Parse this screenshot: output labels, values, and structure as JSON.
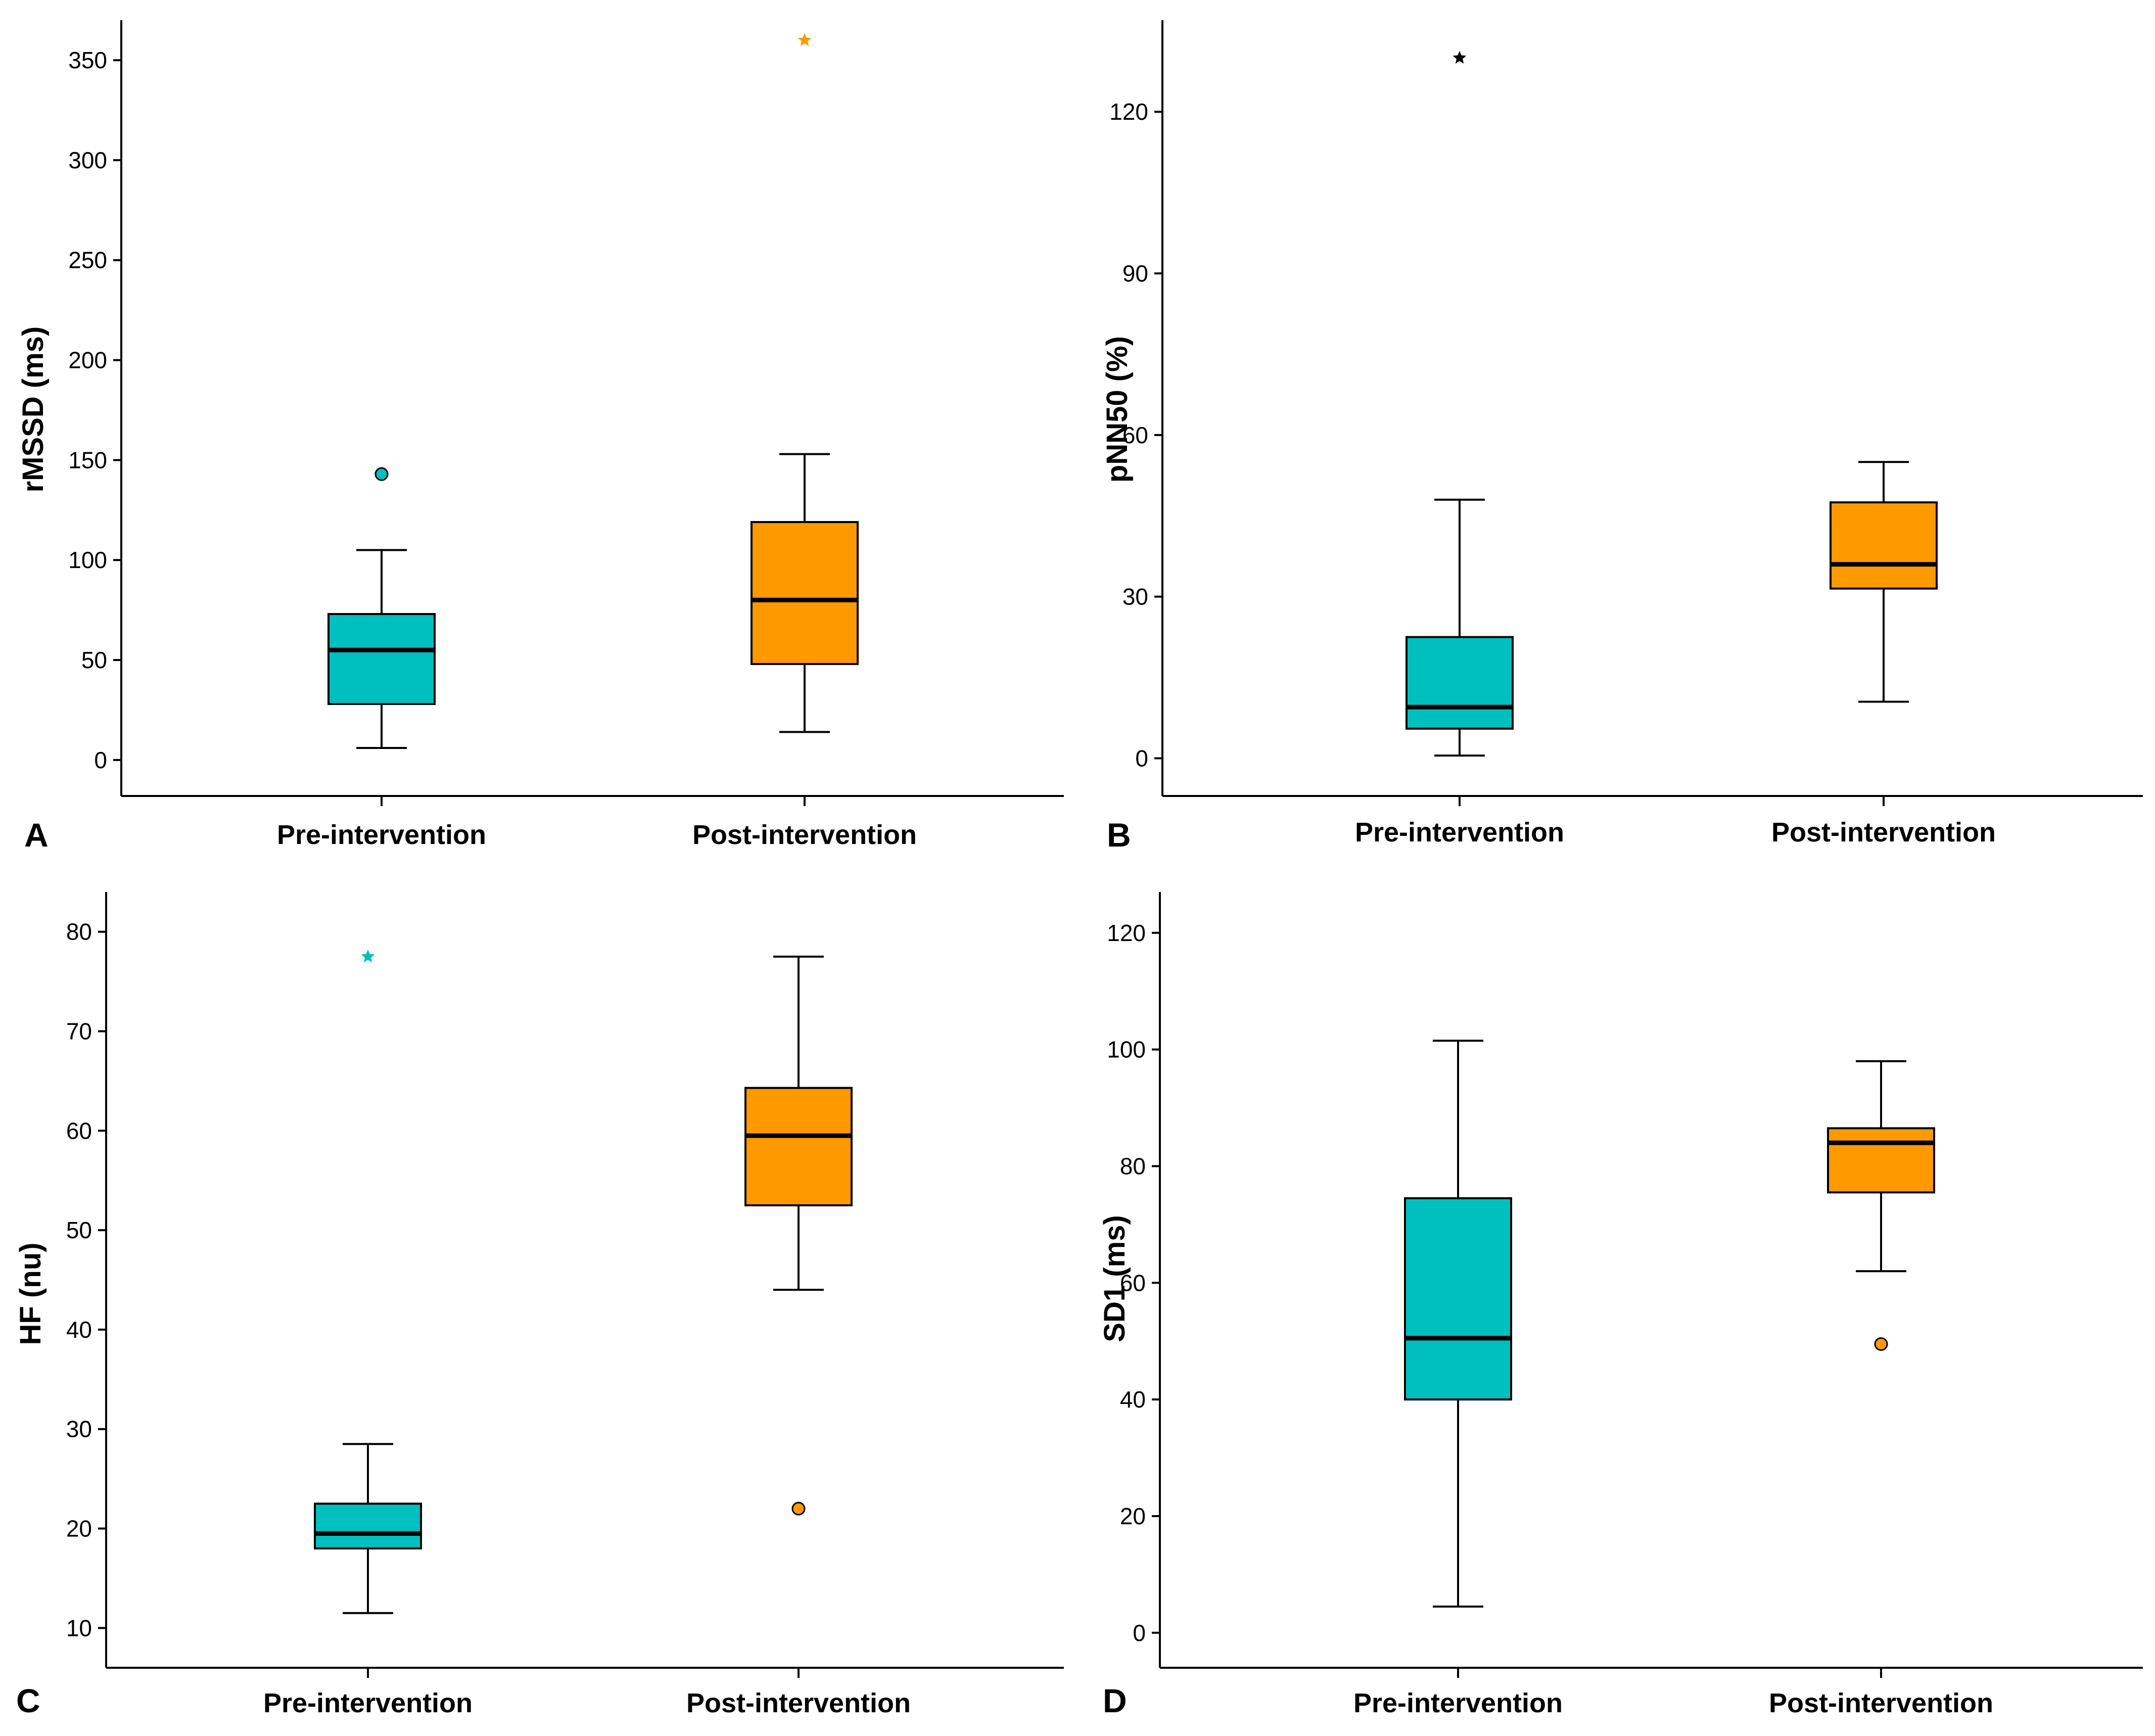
{
  "colors": {
    "pre": "#00bfbf",
    "post": "#ff9900",
    "axis": "#000000",
    "extreme_default": "#000000"
  },
  "chart_data": [
    {
      "type": "box",
      "panel": "A",
      "ylabel": "rMSSD (ms)",
      "ylim": [
        -18,
        370
      ],
      "yticks": [
        0,
        50,
        100,
        150,
        200,
        250,
        300,
        350
      ],
      "categories": [
        "Pre-intervention",
        "Post-intervention"
      ],
      "series": [
        {
          "name": "Pre-intervention",
          "color": "#00bfbf",
          "whisker_low": 6,
          "q1": 28,
          "median": 55,
          "q3": 73,
          "whisker_high": 105,
          "outliers": [
            {
              "value": 143,
              "kind": "circle"
            }
          ]
        },
        {
          "name": "Post-intervention",
          "color": "#ff9900",
          "whisker_low": 14,
          "q1": 48,
          "median": 80,
          "q3": 119,
          "whisker_high": 153,
          "outliers": [
            {
              "value": 360,
              "kind": "star",
              "color": "#ff9900"
            }
          ]
        }
      ]
    },
    {
      "type": "box",
      "panel": "B",
      "ylabel": "pNN50 (%)",
      "ylim": [
        -7,
        137
      ],
      "yticks": [
        0,
        30,
        60,
        90,
        120
      ],
      "categories": [
        "Pre-intervention",
        "Post-intervention"
      ],
      "series": [
        {
          "name": "Pre-intervention",
          "color": "#00bfbf",
          "whisker_low": 0.5,
          "q1": 5.5,
          "median": 9.5,
          "q3": 22.5,
          "whisker_high": 48,
          "outliers": [
            {
              "value": 130,
              "kind": "star",
              "color": "#000000"
            }
          ]
        },
        {
          "name": "Post-intervention",
          "color": "#ff9900",
          "whisker_low": 10.5,
          "q1": 31.5,
          "median": 36,
          "q3": 47.5,
          "whisker_high": 55,
          "outliers": []
        }
      ]
    },
    {
      "type": "box",
      "panel": "C",
      "ylabel": "HF (nu)",
      "ylim": [
        6,
        84
      ],
      "yticks": [
        10,
        20,
        30,
        40,
        50,
        60,
        70,
        80
      ],
      "categories": [
        "Pre-intervention",
        "Post-intervention"
      ],
      "series": [
        {
          "name": "Pre-intervention",
          "color": "#00bfbf",
          "whisker_low": 11.5,
          "q1": 18,
          "median": 19.5,
          "q3": 22.5,
          "whisker_high": 28.5,
          "outliers": [
            {
              "value": 77.5,
              "kind": "star",
              "color": "#00bfbf"
            }
          ]
        },
        {
          "name": "Post-intervention",
          "color": "#ff9900",
          "whisker_low": 44,
          "q1": 52.5,
          "median": 59.5,
          "q3": 64.3,
          "whisker_high": 77.5,
          "outliers": [
            {
              "value": 22,
              "kind": "circle"
            }
          ]
        }
      ]
    },
    {
      "type": "box",
      "panel": "D",
      "ylabel": "SD1 (ms)",
      "ylim": [
        -6,
        127
      ],
      "yticks": [
        0,
        20,
        40,
        60,
        80,
        100,
        120
      ],
      "categories": [
        "Pre-intervention",
        "Post-intervention"
      ],
      "series": [
        {
          "name": "Pre-intervention",
          "color": "#00bfbf",
          "whisker_low": 4.5,
          "q1": 40,
          "median": 50.5,
          "q3": 74.5,
          "whisker_high": 101.5,
          "outliers": []
        },
        {
          "name": "Post-intervention",
          "color": "#ff9900",
          "whisker_low": 62,
          "q1": 75.5,
          "median": 84,
          "q3": 86.5,
          "whisker_high": 98,
          "outliers": [
            {
              "value": 49.5,
              "kind": "circle"
            }
          ]
        }
      ]
    }
  ]
}
